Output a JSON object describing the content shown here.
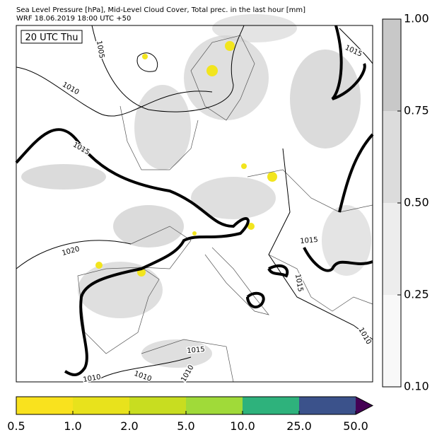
{
  "header": {
    "title": "Sea Level Pressure [hPa], Mid-Level Cloud Cover, Total prec. in the last hour [mm]",
    "subtitle": "WRF 18.06.2019 18:00 UTC +50"
  },
  "map": {
    "time_label": "20 UTC Thu",
    "contour_labels": [
      "1005",
      "1010",
      "1015",
      "1015",
      "1020",
      "1015",
      "1015",
      "1010",
      "1010",
      "1010",
      "1010",
      "1015"
    ]
  },
  "cloud_colorbar": {
    "ticks": [
      "1.00",
      "0.75",
      "0.50",
      "0.25",
      "0.10"
    ]
  },
  "precip_colorbar": {
    "ticks": [
      "0.5",
      "1.0",
      "2.0",
      "5.0",
      "10.0",
      "25.0",
      "50.0"
    ]
  }
}
